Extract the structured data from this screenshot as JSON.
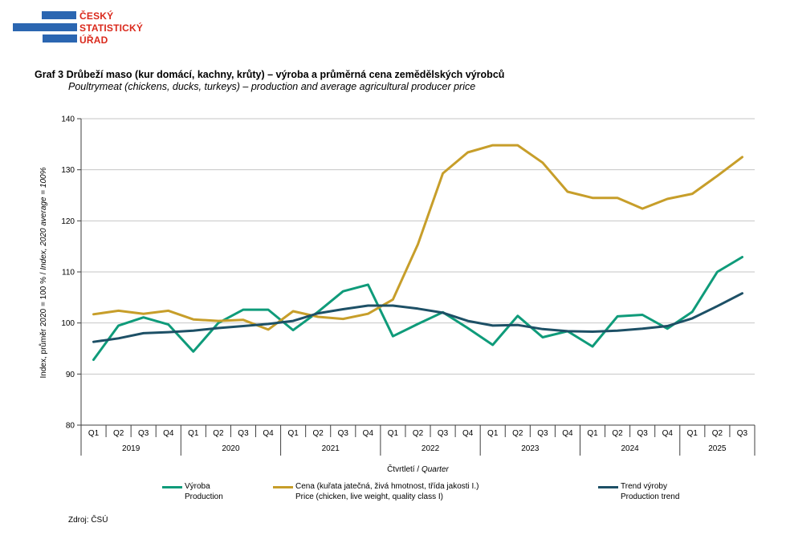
{
  "logo": {
    "line1": "ČESKÝ",
    "line2": "STATISTICKÝ",
    "line3": "ÚŘAD"
  },
  "title": {
    "cz": "Graf 3 Drůbeží maso (kur domácí, kachny, krůty) – výroba a průměrná cena zemědělských výrobců",
    "en": "Poultrymeat (chickens, ducks, turkeys) – production and average agricultural producer price"
  },
  "footer": {
    "source": "Zdroj: ČSÚ"
  },
  "chart_data": {
    "type": "line",
    "x_groups": [
      {
        "year": "2019",
        "quarters": [
          "Q1",
          "Q2",
          "Q3",
          "Q4"
        ]
      },
      {
        "year": "2020",
        "quarters": [
          "Q1",
          "Q2",
          "Q3",
          "Q4"
        ]
      },
      {
        "year": "2021",
        "quarters": [
          "Q1",
          "Q2",
          "Q3",
          "Q4"
        ]
      },
      {
        "year": "2022",
        "quarters": [
          "Q1",
          "Q2",
          "Q3",
          "Q4"
        ]
      },
      {
        "year": "2023",
        "quarters": [
          "Q1",
          "Q2",
          "Q3",
          "Q4"
        ]
      },
      {
        "year": "2024",
        "quarters": [
          "Q1",
          "Q2",
          "Q3",
          "Q4"
        ]
      },
      {
        "year": "2025",
        "quarters": [
          "Q1",
          "Q2",
          "Q3"
        ]
      }
    ],
    "xlabel": {
      "cz": "Čtvrtletí / ",
      "en": "Quarter"
    },
    "ylabel": {
      "cz": "Index, průměr 2020 = 100 % / ",
      "en": "Index, 2020 average = 100%"
    },
    "ylim": [
      80,
      140
    ],
    "yticks": [
      80,
      90,
      100,
      110,
      120,
      130,
      140
    ],
    "grid": true,
    "legend_position": "bottom",
    "colors": {
      "axis": "#3f3f3f",
      "grid": "#c6c6c6"
    },
    "series": [
      {
        "name_cz": "Výroba",
        "name_en": "Production",
        "color": "#0f9b7a",
        "values": [
          92.8,
          99.5,
          101.1,
          99.7,
          94.4,
          100.0,
          102.6,
          102.6,
          98.6,
          102.2,
          106.2,
          107.5,
          97.4,
          99.8,
          102.1,
          99.0,
          95.7,
          101.4,
          97.2,
          98.4,
          95.4,
          101.3,
          101.6,
          98.9,
          102.2,
          110.0,
          112.9
        ]
      },
      {
        "name_cz": "Cena (kuřata jatečná, živá hmotnost, třída jakosti I.)",
        "name_en": "Price (chicken, live weight, quality class I)",
        "color": "#c79e2a",
        "values": [
          101.7,
          102.4,
          101.8,
          102.4,
          100.7,
          100.4,
          100.6,
          98.7,
          102.3,
          101.2,
          100.8,
          101.8,
          104.6,
          115.4,
          129.3,
          133.4,
          134.8,
          134.8,
          131.4,
          125.7,
          124.5,
          124.5,
          122.4,
          124.3,
          125.3,
          128.8,
          132.5
        ]
      },
      {
        "name_cz": "Trend výroby",
        "name_en": "Production trend",
        "color": "#1d5066",
        "values": [
          96.3,
          97.0,
          98.0,
          98.2,
          98.5,
          99.0,
          99.4,
          99.8,
          100.4,
          101.9,
          102.7,
          103.4,
          103.4,
          102.8,
          102.0,
          100.4,
          99.5,
          99.6,
          98.8,
          98.4,
          98.3,
          98.5,
          98.9,
          99.4,
          100.9,
          103.3,
          105.8
        ]
      }
    ]
  }
}
